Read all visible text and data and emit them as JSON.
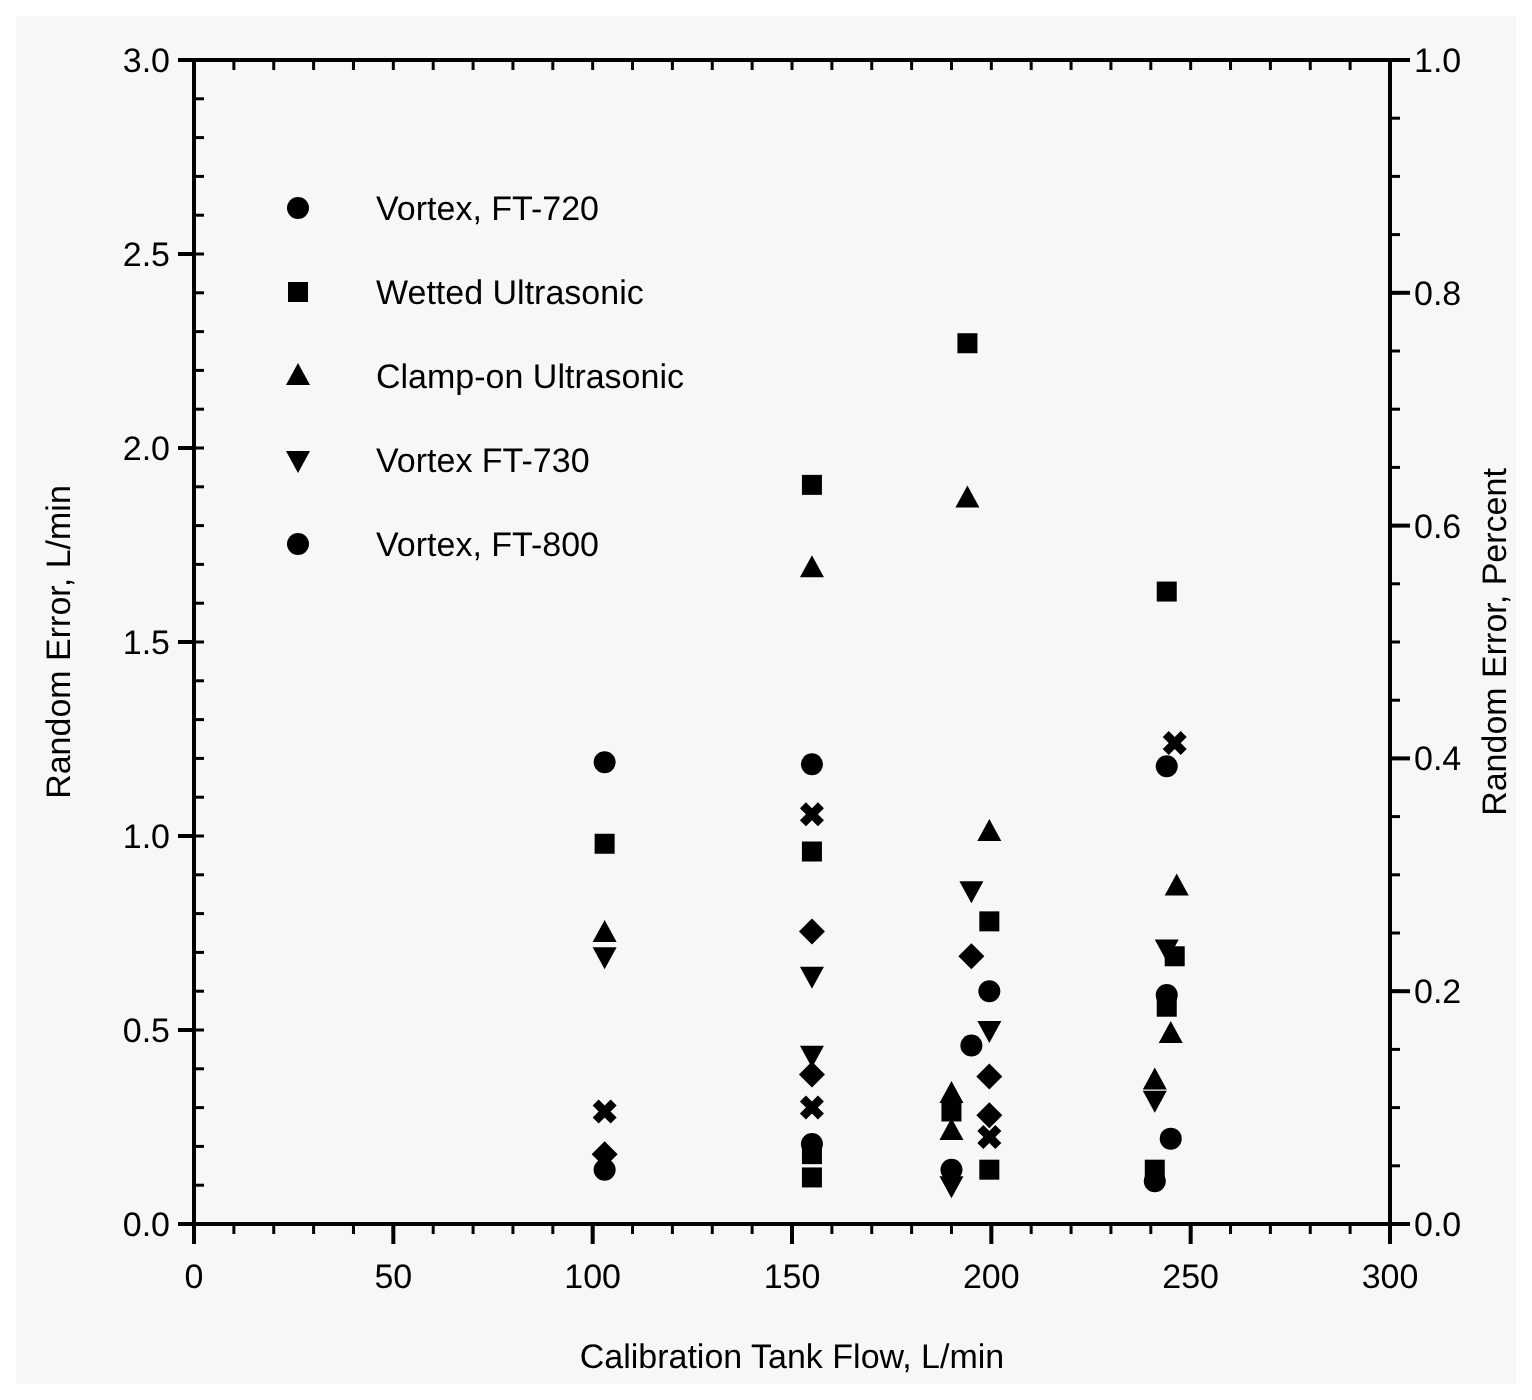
{
  "chart_data": {
    "type": "scatter",
    "xlabel": "Calibration Tank Flow, L/min",
    "ylabel": "Random Error, L/min",
    "y2label": "Random Error, Percent",
    "xlim": [
      0,
      300
    ],
    "xticks": [
      0,
      50,
      100,
      150,
      200,
      250,
      300
    ],
    "ylim": [
      0,
      3
    ],
    "yticks": [
      {
        "value": 0,
        "label": "0.0"
      },
      {
        "value": 0.5,
        "label": "0.5"
      },
      {
        "value": 1,
        "label": "1.0"
      },
      {
        "value": 1.5,
        "label": "1.5"
      },
      {
        "value": 2,
        "label": "2.0"
      },
      {
        "value": 2.5,
        "label": "2.5"
      },
      {
        "value": 3,
        "label": "3.0"
      }
    ],
    "y2lim": [
      0,
      1
    ],
    "y2ticks": [
      {
        "value": 0,
        "label": "0.0"
      },
      {
        "value": 0.2,
        "label": "0.2"
      },
      {
        "value": 0.4,
        "label": "0.4"
      },
      {
        "value": 0.6,
        "label": "0.6"
      },
      {
        "value": 0.8,
        "label": "0.8"
      },
      {
        "value": 1,
        "label": "1.0"
      }
    ],
    "legend": "top left",
    "grid": false,
    "series": [
      {
        "name": "Vortex, FT-720",
        "color": "#000000",
        "marker": "circle",
        "x": [
          103,
          155,
          199.5,
          244
        ],
        "values": [
          1.19,
          1.185,
          0.6,
          1.18
        ]
      },
      {
        "name": "Wetted Ultrasonic",
        "color": "#000000",
        "marker": "square",
        "x": [
          103,
          155,
          155,
          155,
          155,
          194,
          190,
          199.5,
          199.5,
          244,
          246,
          244,
          241
        ],
        "values": [
          0.98,
          1.905,
          0.96,
          0.18,
          0.12,
          2.27,
          0.29,
          0.78,
          0.14,
          1.63,
          0.69,
          0.56,
          0.14
        ]
      },
      {
        "name": "Clamp-on Ultrasonic",
        "color": "#000000",
        "marker": "triangle",
        "x": [
          103,
          155,
          194,
          190,
          190,
          199.5,
          246.5,
          245,
          241
        ],
        "values": [
          0.75,
          1.69,
          1.87,
          0.335,
          0.24,
          1.01,
          0.87,
          0.49,
          0.37
        ]
      },
      {
        "name": "Vortex FT-730",
        "color": "#000000",
        "marker": "triangle-down",
        "x": [
          103,
          155,
          155,
          195,
          199.5,
          190,
          244,
          241
        ],
        "values": [
          0.69,
          0.64,
          0.436,
          0.86,
          0.5,
          0.1,
          0.71,
          0.32
        ]
      },
      {
        "name": "Vortex, FT-800",
        "color": "#000000",
        "marker": "circle",
        "x": [
          103,
          155,
          190,
          195,
          244,
          245,
          241
        ],
        "values": [
          0.14,
          0.206,
          0.14,
          0.46,
          0.59,
          0.22,
          0.11
        ]
      },
      {
        "color": "#000000",
        "marker": "cross",
        "x": [
          103,
          155,
          155,
          199.5,
          246
        ],
        "values": [
          0.29,
          1.056,
          0.3,
          0.224,
          1.24
        ]
      },
      {
        "color": "#000000",
        "marker": "diamond",
        "x": [
          103,
          155,
          155,
          195,
          199.5,
          199.5
        ],
        "values": [
          0.18,
          0.754,
          0.385,
          0.69,
          0.38,
          0.28
        ]
      }
    ]
  }
}
